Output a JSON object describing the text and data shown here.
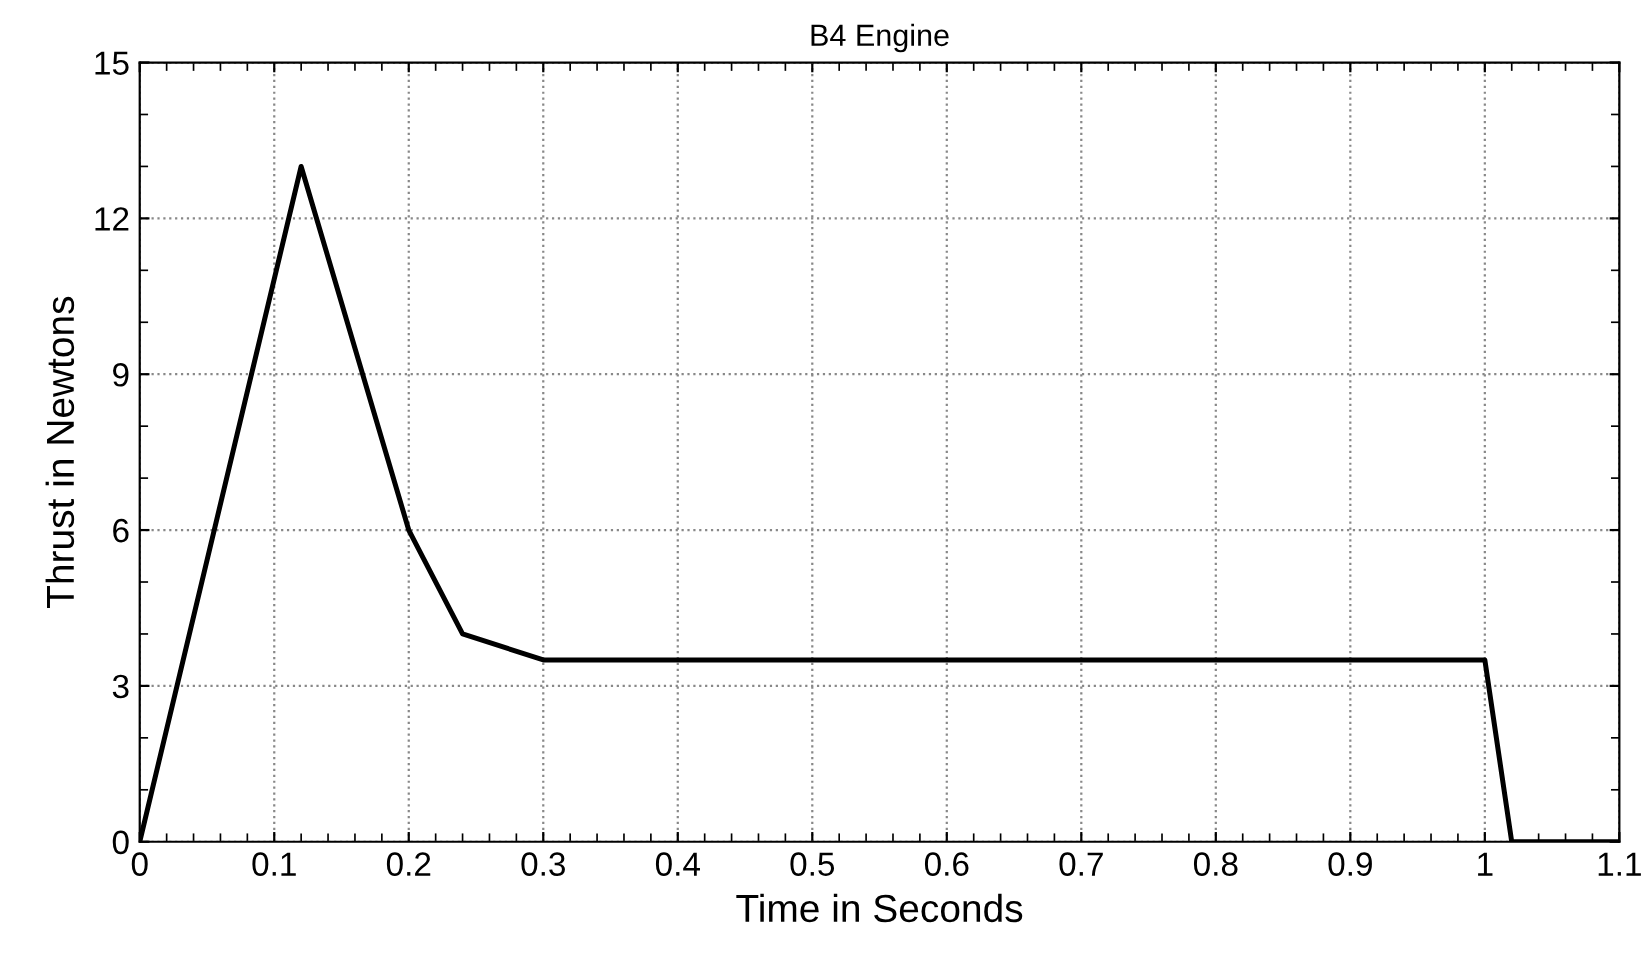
{
  "chart_data": {
    "type": "line",
    "title": "B4 Engine",
    "xlabel": "Time in Seconds",
    "ylabel": "Thrust in Newtons",
    "x": [
      0,
      0.12,
      0.2,
      0.24,
      0.3,
      1.0,
      1.02,
      1.1
    ],
    "series": [
      {
        "color": "#000000",
        "values": [
          0,
          13,
          6,
          4,
          3.5,
          3.5,
          0,
          0
        ]
      }
    ],
    "xlim": [
      0,
      1.1
    ],
    "xticks": [
      0,
      0.1,
      0.2,
      0.3,
      0.4,
      0.5,
      0.6,
      0.7,
      0.8,
      0.9,
      1,
      1.1
    ],
    "ylim": [
      0,
      15
    ],
    "yticks": [
      0,
      3,
      6,
      9,
      12,
      15
    ],
    "grid": true,
    "marker": "none",
    "line_style": "solid"
  }
}
